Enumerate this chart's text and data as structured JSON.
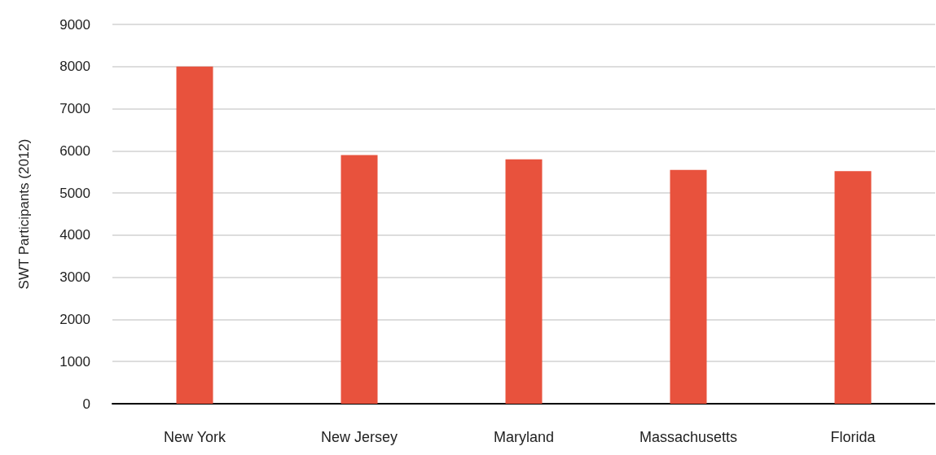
{
  "chart_data": {
    "type": "bar",
    "ylabel": "SWT Participants (2012)",
    "categories": [
      "New York",
      "New Jersey",
      "Maryland",
      "Massachusetts",
      "Florida"
    ],
    "values": [
      8000,
      5900,
      5800,
      5550,
      5520
    ],
    "color": "#e8523d",
    "ylim": [
      0,
      9000
    ],
    "yticks": [
      0,
      1000,
      2000,
      3000,
      4000,
      5000,
      6000,
      7000,
      8000,
      9000
    ],
    "grid": "y"
  }
}
